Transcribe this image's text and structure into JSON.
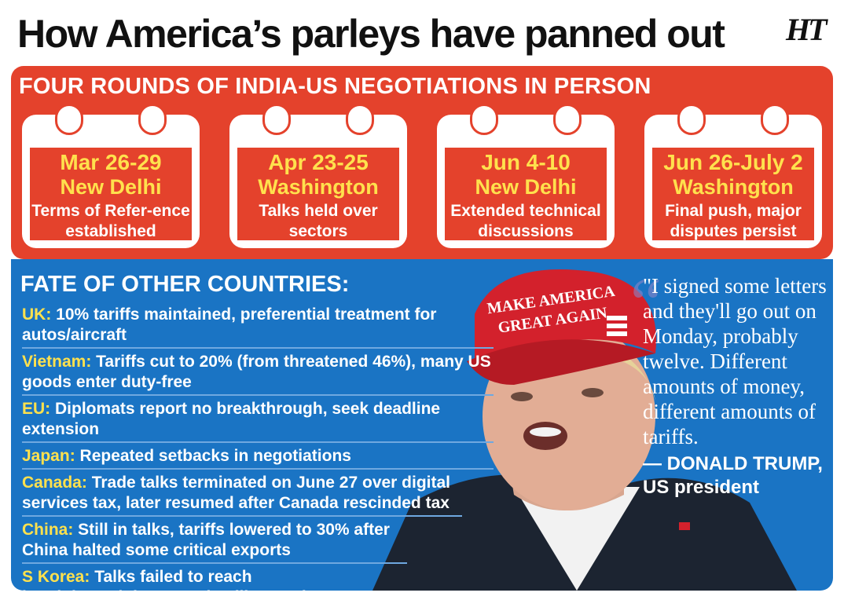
{
  "title": "How America’s parleys have panned out",
  "logo_text": "HT",
  "rounds_heading": "FOUR ROUNDS OF INDIA-US NEGOTIATIONS IN PERSON",
  "rounds": [
    {
      "date": "Mar 26-29",
      "city": "New Delhi",
      "desc": "Terms of Refer-ence established"
    },
    {
      "date": "Apr 23-25",
      "city": "Washington",
      "desc": "Talks held over sectors"
    },
    {
      "date": "Jun 4-10",
      "city": "New Delhi",
      "desc": "Extended technical discussions"
    },
    {
      "date": "Jun 26-July 2",
      "city": "Washington",
      "desc": "Final push, major disputes persist"
    }
  ],
  "countries_heading": "FATE OF OTHER COUNTRIES:",
  "countries": [
    {
      "name": "UK:",
      "text": "10% tariffs maintained, preferential treatment for autos/aircraft"
    },
    {
      "name": "Vietnam:",
      "text": "Tariffs cut to 20% (from threatened 46%), many US goods enter duty-free"
    },
    {
      "name": "EU:",
      "text": "Diplomats report no breakthrough, seek deadline extension"
    },
    {
      "name": "Japan:",
      "text": "Repeated setbacks in negotiations"
    },
    {
      "name": "Canada:",
      "text": "Trade talks terminated on June 27 over digital services tax, later resumed after Canada rescinded tax"
    },
    {
      "name": "China:",
      "text": "Still in talks, tariffs lowered to 30% after China halted some critical exports"
    },
    {
      "name": "S Korea:",
      "text": "Talks failed to reach breakthrough in June; deadline unclear"
    }
  ],
  "quote": "\"I signed some letters and they'll go out on Monday, probably twelve. Different amounts of money, different amounts of tariffs.",
  "quote_speaker": "— DONALD TRUMP,",
  "quote_role": "US president",
  "cap_text": {
    "line1": "MAKE AMERICA",
    "line2": "GREAT AGAIN"
  },
  "colors": {
    "red": "#e4422c",
    "blue": "#1a74c4",
    "yellow": "#ffe14d"
  }
}
